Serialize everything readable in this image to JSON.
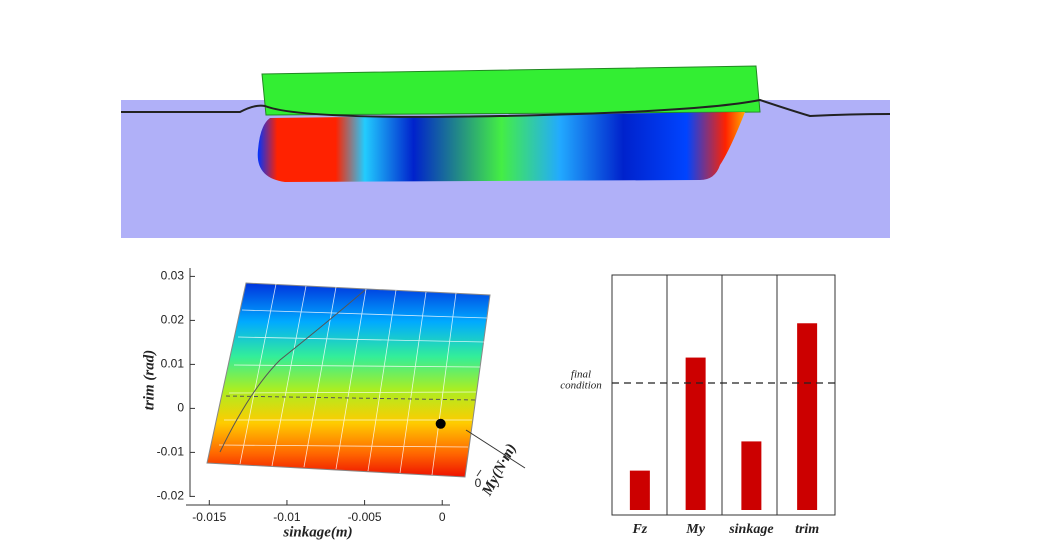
{
  "chart_data": [
    {
      "type": "surface",
      "xlabel": "sinkage(m)",
      "ylabel": "trim (rad)",
      "zlabel": "My(N·m)",
      "xlim": [
        -0.0165,
        0.0005
      ],
      "xticks": [
        -0.015,
        -0.01,
        -0.005,
        0
      ],
      "ylim": [
        -0.0215,
        0.031
      ],
      "yticks": [
        -0.02,
        -0.01,
        0,
        0.01,
        0.02,
        0.03
      ],
      "zticks": [
        0
      ],
      "point": {
        "x": -0.0001,
        "y": -0.0035
      }
    },
    {
      "type": "bar",
      "categories": [
        "Fz",
        "My",
        "sinkage",
        "trim"
      ],
      "values": [
        0.31,
        1.2,
        0.54,
        1.47
      ],
      "color": "#cc0000",
      "ylim": [
        0,
        1.85
      ],
      "reference_line": {
        "value": 1,
        "label": [
          "final",
          "condition"
        ]
      }
    }
  ]
}
